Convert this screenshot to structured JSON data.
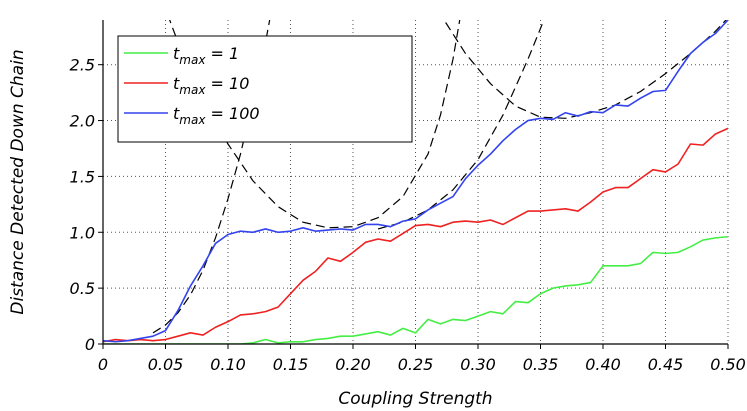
{
  "chart_data": {
    "type": "line",
    "xlabel": "Coupling Strength",
    "ylabel": "Distance Detected Down Chain",
    "xlim": [
      0,
      0.5
    ],
    "ylim": [
      0,
      2.9
    ],
    "x_ticks": [
      0,
      0.05,
      0.1,
      0.15,
      0.2,
      0.25,
      0.3,
      0.35,
      0.4,
      0.45,
      0.5
    ],
    "x_tick_labels": [
      "0",
      "0.05",
      "0.10",
      "0.15",
      "0.20",
      "0.25",
      "0.30",
      "0.35",
      "0.40",
      "0.45",
      "0.50"
    ],
    "y_ticks": [
      0,
      0.5,
      1.0,
      1.5,
      2.0,
      2.5
    ],
    "y_tick_labels": [
      "0",
      "0.5",
      "1.0",
      "1.5",
      "2.0",
      "2.5"
    ],
    "grid": true,
    "legend_position": "top-left",
    "series": [
      {
        "name_main": "t",
        "name_sub": "max",
        "name_rest": " = 1",
        "color": "#44ee44",
        "x": [
          0,
          0.01,
          0.02,
          0.03,
          0.04,
          0.05,
          0.06,
          0.07,
          0.08,
          0.09,
          0.1,
          0.11,
          0.12,
          0.13,
          0.14,
          0.15,
          0.16,
          0.17,
          0.18,
          0.19,
          0.2,
          0.21,
          0.22,
          0.23,
          0.24,
          0.25,
          0.26,
          0.27,
          0.28,
          0.29,
          0.3,
          0.31,
          0.32,
          0.33,
          0.34,
          0.35,
          0.36,
          0.37,
          0.38,
          0.39,
          0.4,
          0.41,
          0.42,
          0.43,
          0.44,
          0.45,
          0.46,
          0.47,
          0.48,
          0.49,
          0.5
        ],
        "y": [
          0.0,
          0.0,
          0.0,
          0.0,
          0.0,
          0.0,
          0.0,
          0.0,
          0.0,
          0.0,
          0.0,
          0.0,
          0.01,
          0.04,
          0.01,
          0.02,
          0.02,
          0.04,
          0.05,
          0.07,
          0.07,
          0.09,
          0.11,
          0.08,
          0.14,
          0.1,
          0.22,
          0.18,
          0.22,
          0.21,
          0.25,
          0.29,
          0.27,
          0.38,
          0.37,
          0.45,
          0.5,
          0.52,
          0.53,
          0.55,
          0.7,
          0.7,
          0.7,
          0.72,
          0.82,
          0.81,
          0.82,
          0.87,
          0.93,
          0.95,
          0.96
        ]
      },
      {
        "name_main": "t",
        "name_sub": "max",
        "name_rest": " = 10",
        "color": "#ee2222",
        "x": [
          0,
          0.01,
          0.02,
          0.03,
          0.04,
          0.05,
          0.06,
          0.07,
          0.08,
          0.09,
          0.1,
          0.11,
          0.12,
          0.13,
          0.14,
          0.15,
          0.16,
          0.17,
          0.18,
          0.19,
          0.2,
          0.21,
          0.22,
          0.23,
          0.24,
          0.25,
          0.26,
          0.27,
          0.28,
          0.29,
          0.3,
          0.31,
          0.32,
          0.33,
          0.34,
          0.35,
          0.36,
          0.37,
          0.38,
          0.39,
          0.4,
          0.41,
          0.42,
          0.43,
          0.44,
          0.45,
          0.46,
          0.47,
          0.48,
          0.49,
          0.5
        ],
        "y": [
          0.02,
          0.04,
          0.03,
          0.04,
          0.03,
          0.04,
          0.07,
          0.1,
          0.08,
          0.15,
          0.2,
          0.26,
          0.27,
          0.29,
          0.33,
          0.45,
          0.57,
          0.65,
          0.77,
          0.74,
          0.82,
          0.91,
          0.94,
          0.92,
          0.99,
          1.06,
          1.07,
          1.05,
          1.09,
          1.1,
          1.09,
          1.11,
          1.07,
          1.13,
          1.19,
          1.19,
          1.2,
          1.21,
          1.19,
          1.27,
          1.36,
          1.4,
          1.4,
          1.48,
          1.56,
          1.54,
          1.61,
          1.79,
          1.78,
          1.88,
          1.93
        ]
      },
      {
        "name_main": "t",
        "name_sub": "max",
        "name_rest": " = 100",
        "color": "#3344ee",
        "x": [
          0,
          0.01,
          0.02,
          0.03,
          0.04,
          0.05,
          0.06,
          0.07,
          0.08,
          0.09,
          0.1,
          0.11,
          0.12,
          0.13,
          0.14,
          0.15,
          0.16,
          0.17,
          0.18,
          0.19,
          0.2,
          0.21,
          0.22,
          0.23,
          0.24,
          0.25,
          0.26,
          0.27,
          0.28,
          0.29,
          0.3,
          0.31,
          0.32,
          0.33,
          0.34,
          0.35,
          0.36,
          0.37,
          0.38,
          0.39,
          0.4,
          0.41,
          0.42,
          0.43,
          0.44,
          0.45,
          0.46,
          0.47,
          0.48,
          0.49,
          0.5
        ],
        "y": [
          0.03,
          0.02,
          0.03,
          0.05,
          0.07,
          0.12,
          0.3,
          0.52,
          0.7,
          0.9,
          0.98,
          1.01,
          1.0,
          1.03,
          1.0,
          1.01,
          1.04,
          1.01,
          1.02,
          1.03,
          1.02,
          1.07,
          1.07,
          1.05,
          1.1,
          1.12,
          1.2,
          1.26,
          1.32,
          1.48,
          1.6,
          1.7,
          1.82,
          1.92,
          2.0,
          2.02,
          2.01,
          2.07,
          2.04,
          2.08,
          2.07,
          2.14,
          2.13,
          2.2,
          2.26,
          2.27,
          2.44,
          2.6,
          2.7,
          2.78,
          2.9
        ]
      }
    ],
    "guide_curves": [
      {
        "style": "dashed",
        "color": "#000000",
        "x": [
          0.04,
          0.05,
          0.06,
          0.07,
          0.08,
          0.09,
          0.1,
          0.11,
          0.12,
          0.13,
          0.135,
          0.14,
          0.145
        ],
        "y": [
          0.1,
          0.17,
          0.28,
          0.44,
          0.66,
          0.95,
          1.3,
          1.7,
          2.18,
          2.7,
          3.0,
          3.3,
          3.6
        ]
      },
      {
        "style": "dashed",
        "color": "#000000",
        "x": [
          0.04,
          0.06,
          0.08,
          0.1,
          0.12,
          0.14,
          0.16,
          0.18,
          0.2,
          0.22,
          0.24,
          0.26,
          0.27,
          0.28,
          0.29
        ],
        "y": [
          3.3,
          2.7,
          2.2,
          1.79,
          1.46,
          1.23,
          1.09,
          1.04,
          1.05,
          1.13,
          1.32,
          1.7,
          2.05,
          2.55,
          3.2
        ]
      },
      {
        "style": "dashed",
        "color": "#000000",
        "x": [
          0.25,
          0.27,
          0.29,
          0.31,
          0.33,
          0.35,
          0.37,
          0.39,
          0.41,
          0.43,
          0.45,
          0.47,
          0.49,
          0.5
        ],
        "y": [
          3.3,
          2.95,
          2.6,
          2.33,
          2.13,
          2.03,
          2.02,
          2.07,
          2.14,
          2.26,
          2.42,
          2.6,
          2.8,
          2.92
        ]
      },
      {
        "style": "dashed",
        "color": "#000000",
        "x": [
          0.22,
          0.24,
          0.26,
          0.28,
          0.3,
          0.32,
          0.34,
          0.36,
          0.37
        ],
        "y": [
          1.03,
          1.09,
          1.2,
          1.38,
          1.65,
          2.05,
          2.55,
          3.1,
          3.4
        ]
      }
    ]
  }
}
